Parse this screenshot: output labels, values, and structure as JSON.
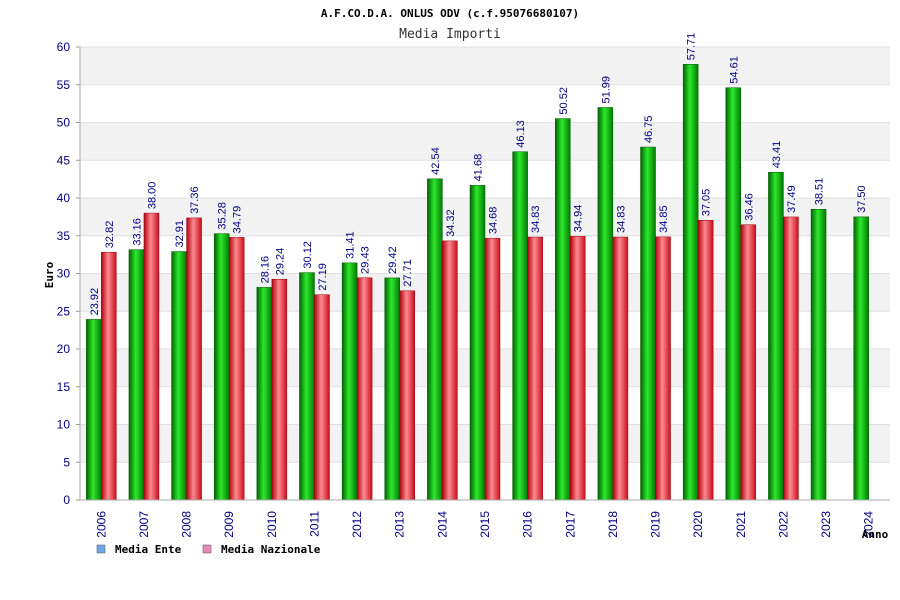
{
  "chart_data": {
    "type": "bar",
    "title": "A.F.CO.D.A. ONLUS ODV (c.f.95076680107)",
    "subtitle": "Media Importi",
    "xlabel": "Anno",
    "ylabel": "Euro",
    "ylim": [
      0,
      60
    ],
    "yticks": [
      0,
      5,
      10,
      15,
      20,
      25,
      30,
      35,
      40,
      45,
      50,
      55,
      60
    ],
    "grid": true,
    "legend_position": "bottom-left",
    "categories": [
      "2006",
      "2007",
      "2008",
      "2009",
      "2010",
      "2011",
      "2012",
      "2013",
      "2014",
      "2015",
      "2016",
      "2017",
      "2018",
      "2019",
      "2020",
      "2021",
      "2022",
      "2023",
      "2024"
    ],
    "series": [
      {
        "name": "Media Ente",
        "color": "#00a000",
        "legend_color": "#6fa8e8",
        "values": [
          23.92,
          33.16,
          32.91,
          35.28,
          28.16,
          30.12,
          31.41,
          29.42,
          42.54,
          41.68,
          46.13,
          50.52,
          51.99,
          46.75,
          57.71,
          54.61,
          43.41,
          38.51,
          37.5
        ],
        "labels": [
          "23.92",
          "33.16",
          "32.91",
          "35.28",
          "28.16",
          "30.12",
          "31.41",
          "29.42",
          "42.54",
          "41.68",
          "46.13",
          "50.52",
          "51.99",
          "46.75",
          "57.71",
          "54.61",
          "43.41",
          "38.51",
          "37.50"
        ]
      },
      {
        "name": "Media Nazionale",
        "color": "#e0202a",
        "legend_color": "#e88ab8",
        "values": [
          32.82,
          38.0,
          37.36,
          34.79,
          29.24,
          27.19,
          29.43,
          27.71,
          34.32,
          34.68,
          34.83,
          34.94,
          34.83,
          34.85,
          37.05,
          36.46,
          37.49,
          null,
          null
        ],
        "labels": [
          "32.82",
          "38.00",
          "37.36",
          "34.79",
          "29.24",
          "27.19",
          "29.43",
          "27.71",
          "34.32",
          "34.68",
          "34.83",
          "34.94",
          "34.83",
          "34.85",
          "37.05",
          "36.46",
          "37.49",
          "",
          ""
        ]
      }
    ]
  }
}
